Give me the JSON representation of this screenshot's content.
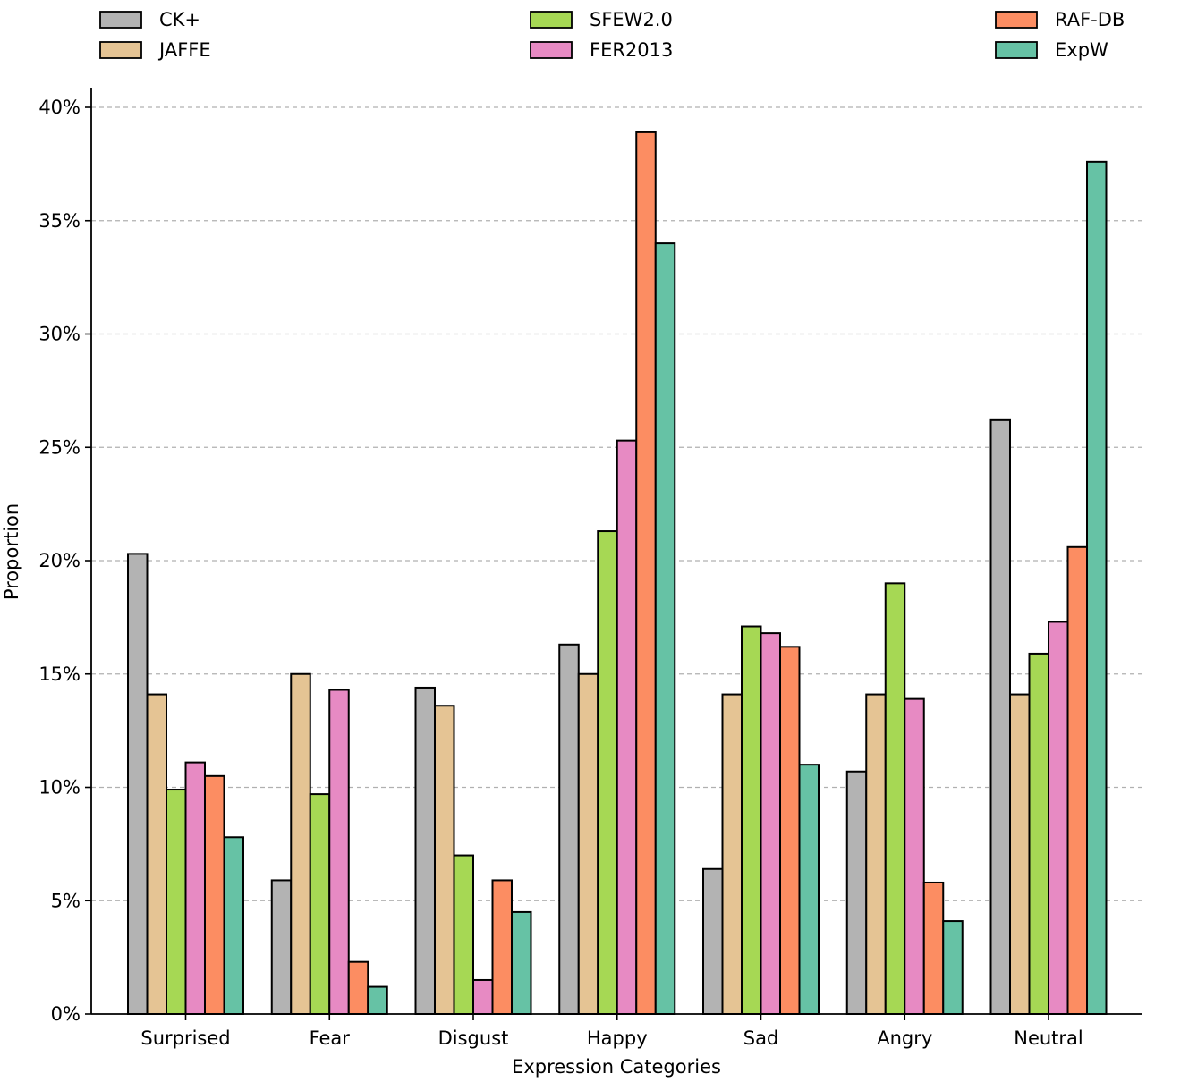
{
  "chart_data": {
    "type": "bar",
    "title": "",
    "xlabel": "Expression Categories",
    "ylabel": "Proportion",
    "ylim": [
      0,
      40
    ],
    "yticks": [
      0,
      5,
      10,
      15,
      20,
      25,
      30,
      35,
      40
    ],
    "ytick_labels": [
      "0%",
      "5%",
      "10%",
      "15%",
      "20%",
      "25%",
      "30%",
      "35%",
      "40%"
    ],
    "grid": "horizontal-dashed",
    "legend_position": "top",
    "categories": [
      "Surprised",
      "Fear",
      "Disgust",
      "Happy",
      "Sad",
      "Angry",
      "Neutral"
    ],
    "series": [
      {
        "name": "CK+",
        "color": "#b3b3b3",
        "values": [
          20.3,
          5.9,
          14.4,
          16.3,
          6.4,
          10.7,
          26.2
        ]
      },
      {
        "name": "JAFFE",
        "color": "#e5c494",
        "values": [
          14.1,
          15.0,
          13.6,
          15.0,
          14.1,
          14.1,
          14.1
        ]
      },
      {
        "name": "SFEW2.0",
        "color": "#a6d854",
        "values": [
          9.9,
          9.7,
          7.0,
          21.3,
          17.1,
          19.0,
          15.9
        ]
      },
      {
        "name": "FER2013",
        "color": "#e78ac3",
        "values": [
          11.1,
          14.3,
          1.5,
          25.3,
          16.8,
          13.9,
          17.3
        ]
      },
      {
        "name": "RAF-DB",
        "color": "#fc8d62",
        "values": [
          10.5,
          2.3,
          5.9,
          38.9,
          16.2,
          5.8,
          20.6
        ]
      },
      {
        "name": "ExpW",
        "color": "#66c2a5",
        "values": [
          7.8,
          1.2,
          4.5,
          34.0,
          11.0,
          4.1,
          37.6
        ]
      }
    ]
  }
}
